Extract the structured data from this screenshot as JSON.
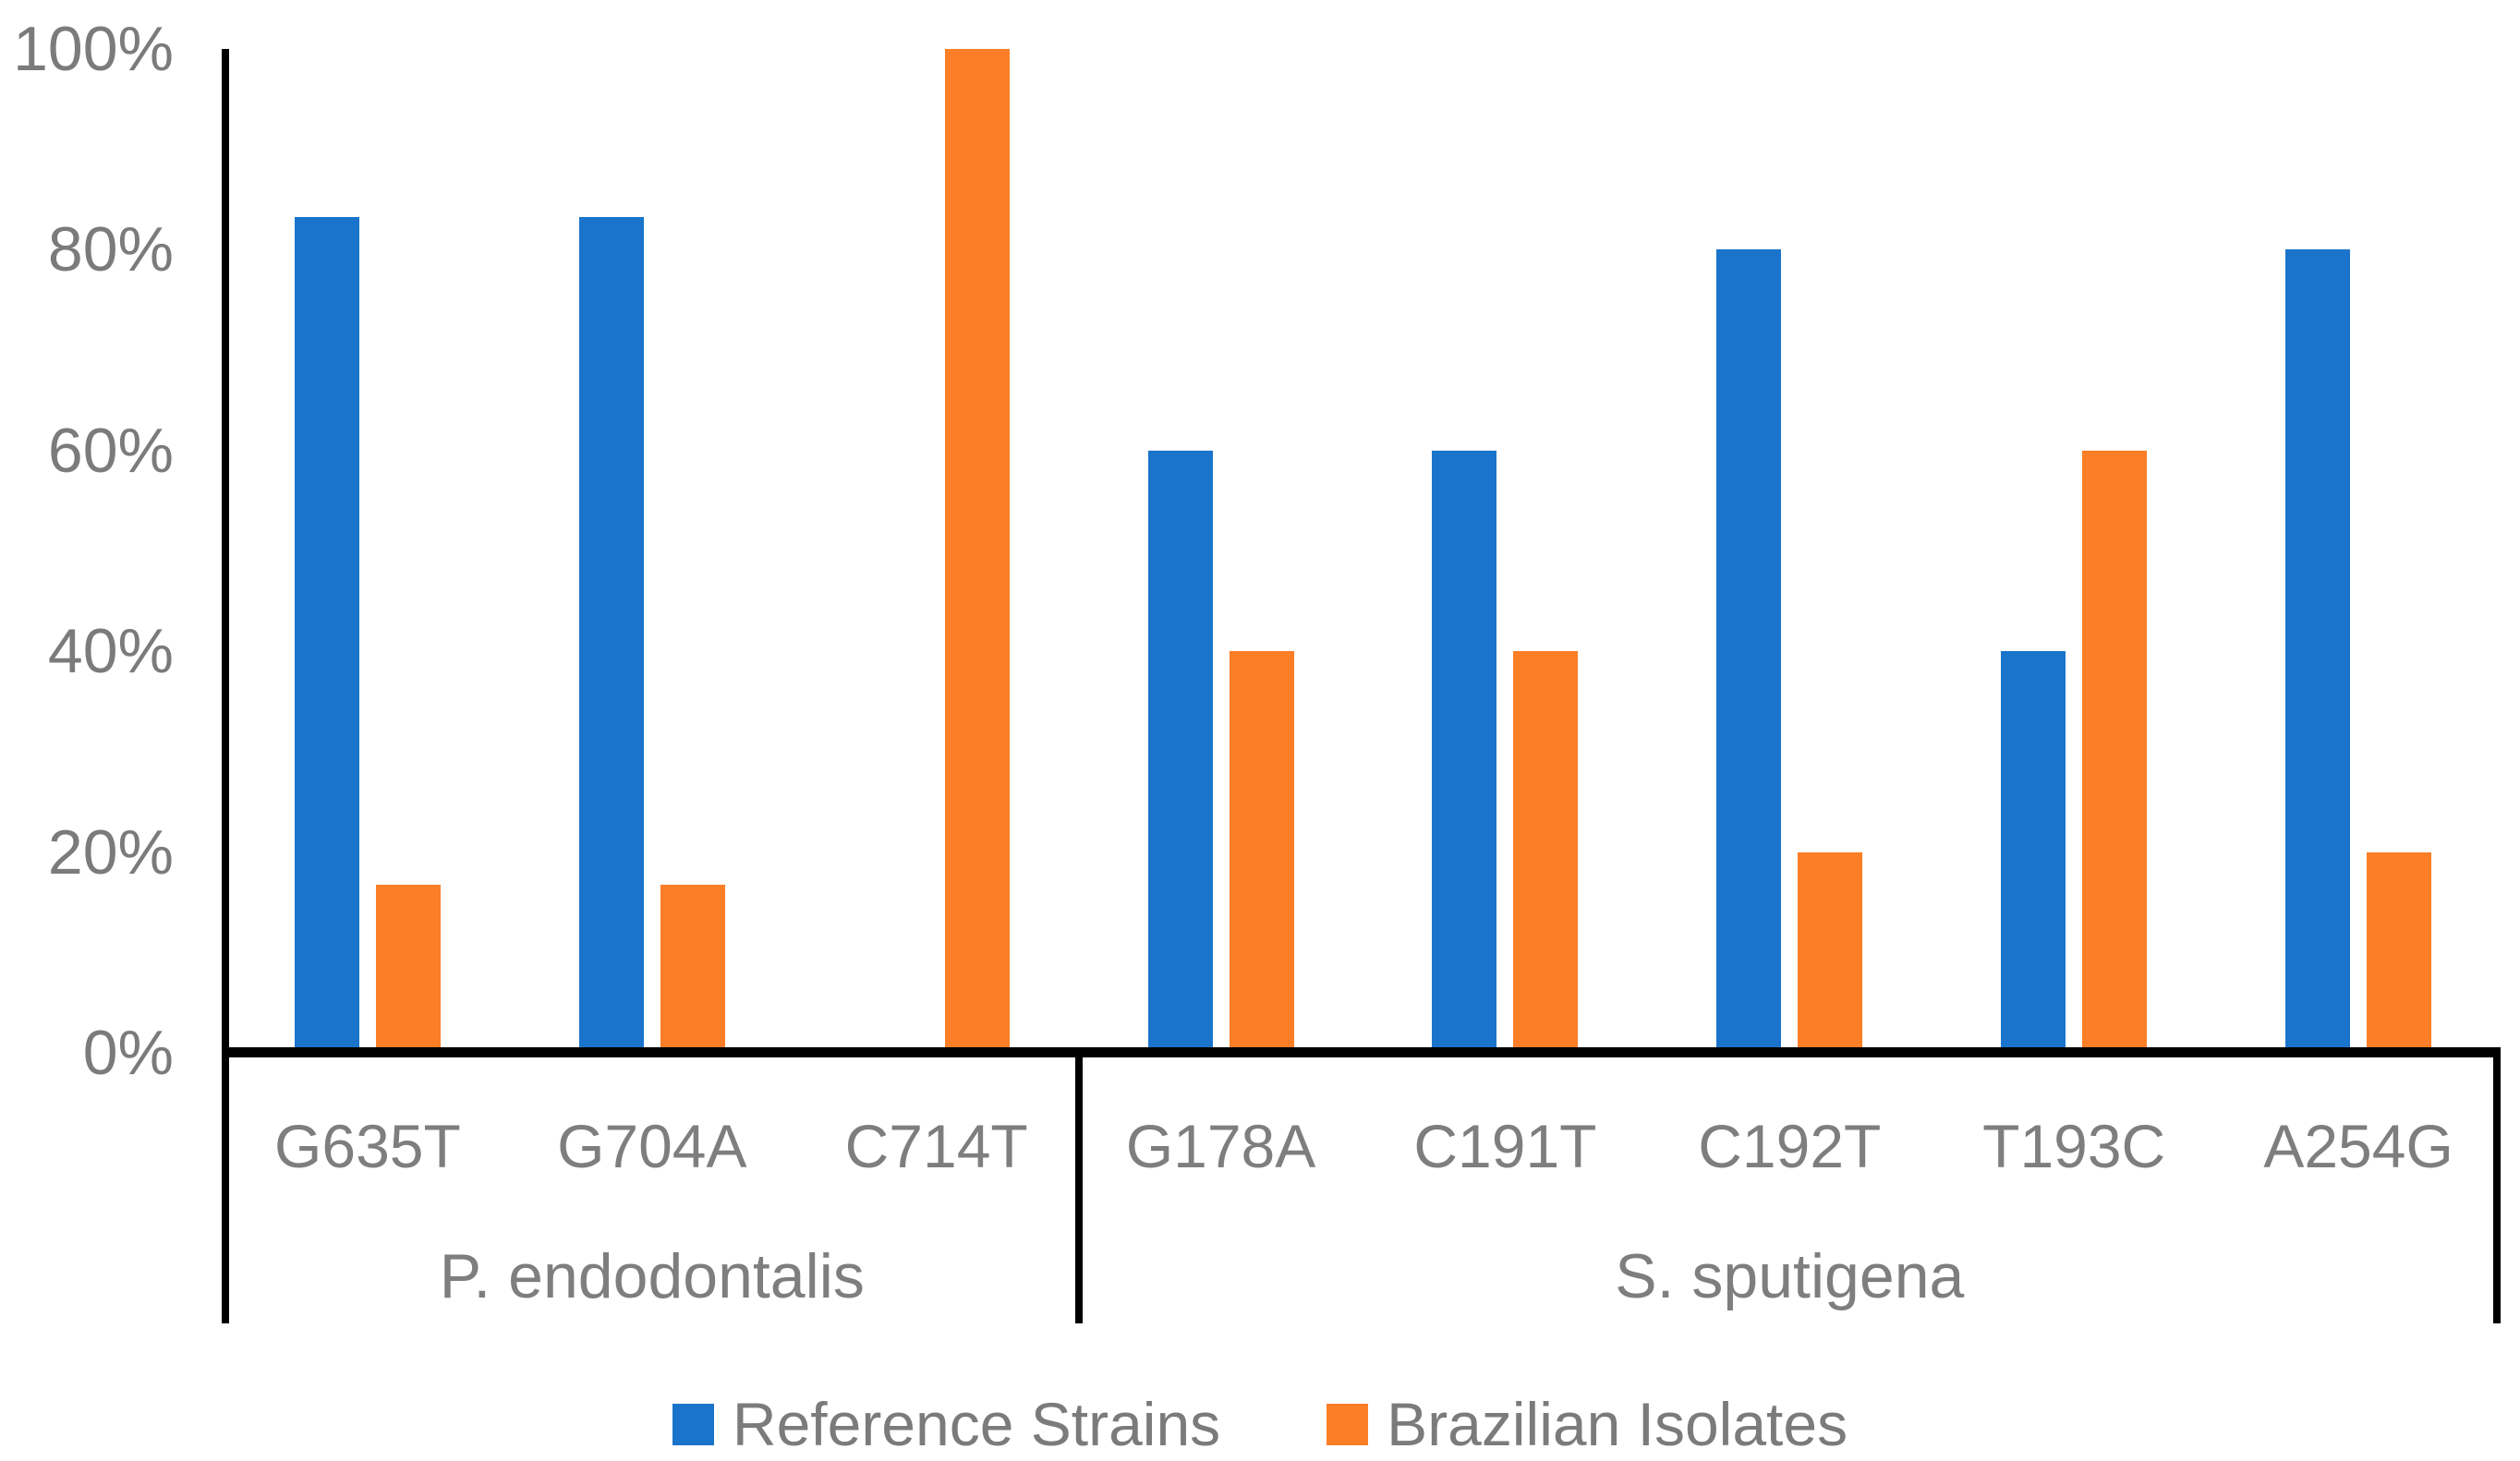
{
  "figure": {
    "background_color": "#ffffff",
    "axis_color": "#000000",
    "text_color": "#7b7b7b"
  },
  "chart_data": {
    "type": "bar",
    "title": "",
    "xlabel": "",
    "ylabel": "",
    "grid": false,
    "legend_position": "bottom",
    "y_axis": {
      "min": 0,
      "max": 100,
      "tick_values": [
        0,
        20,
        40,
        60,
        80,
        100
      ],
      "tick_labels": [
        "0%",
        "20%",
        "40%",
        "60%",
        "80%",
        "100%"
      ]
    },
    "groups": [
      {
        "label": "P. endodontalis",
        "categories": [
          "G635T",
          "G704A",
          "C714T"
        ]
      },
      {
        "label": "S. sputigena",
        "categories": [
          "G178A",
          "C191T",
          "C192T",
          "T193C",
          "A254G"
        ]
      }
    ],
    "categories": [
      "G635T",
      "G704A",
      "C714T",
      "G178A",
      "C191T",
      "C192T",
      "T193C",
      "A254G"
    ],
    "series": [
      {
        "name": "Reference Strains",
        "color": "#1A74CB",
        "values": [
          83.3,
          83.3,
          0,
          60,
          60,
          80,
          40,
          80
        ]
      },
      {
        "name": "Brazilian Isolates",
        "color": "#FC7E26",
        "values": [
          16.7,
          16.7,
          100,
          40,
          40,
          20,
          60,
          20
        ]
      }
    ]
  }
}
